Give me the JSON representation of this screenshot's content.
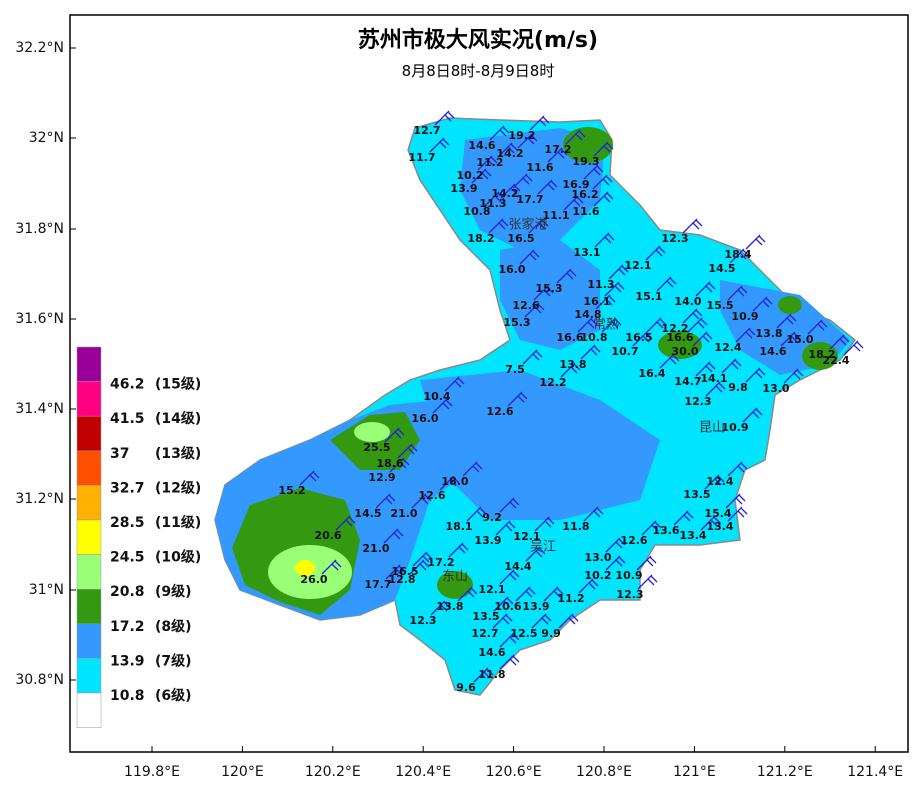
{
  "map": {
    "title": "苏州市极大风实况(m/s)",
    "subtitle": "8月8日8时-8月9日8时",
    "lat_labels": [
      "32.2°N",
      "32°N",
      "31.8°N",
      "31.6°N",
      "31.4°N",
      "31.2°N",
      "31°N",
      "30.8°N"
    ],
    "lon_labels": [
      "119.8°E",
      "120°E",
      "120.2°E",
      "120.4°E",
      "120.6°E",
      "120.8°E",
      "121°E",
      "121.2°E",
      "121.4°E"
    ],
    "legend_colors": [
      "#990099",
      "#ff0080",
      "#c00000",
      "#ff5000",
      "#ffb000",
      "#ffff00",
      "#99ff77",
      "#339911",
      "#3399ff",
      "#00e5ff",
      "#ffffff"
    ],
    "legend": [
      {
        "value": "46.2",
        "level": "(15级)"
      },
      {
        "value": "41.5",
        "level": "(14级)"
      },
      {
        "value": "37",
        "level": "(13级)"
      },
      {
        "value": "32.7",
        "level": "(12级)"
      },
      {
        "value": "28.5",
        "level": "(11级)"
      },
      {
        "value": "24.5",
        "level": "(10级)"
      },
      {
        "value": "20.8",
        "level": "(9级)"
      },
      {
        "value": "17.2",
        "level": "(8级)"
      },
      {
        "value": "13.9",
        "level": "(7级)"
      },
      {
        "value": "10.8",
        "level": "(6级)"
      }
    ],
    "places": [
      "张家港",
      "常熟",
      "吴江",
      "东山",
      "昆山"
    ],
    "stations": [
      "12.7",
      "11.7",
      "14.6",
      "19.2",
      "14.2",
      "17.2",
      "11.2",
      "19.3",
      "11.6",
      "10.2",
      "16.9",
      "13.9",
      "14.2",
      "16.2",
      "11.3",
      "17.7",
      "10.8",
      "11.1",
      "11.6",
      "18.2",
      "16.5",
      "12.3",
      "13.1",
      "18.4",
      "12.1",
      "16.0",
      "14.5",
      "11.3",
      "15.3",
      "15.1",
      "16.1",
      "14.0",
      "15.5",
      "12.6",
      "14.8",
      "15.3",
      "10.9",
      "12.2",
      "13.8",
      "15.0",
      "16.6",
      "10.8",
      "16.5",
      "16.6",
      "30.0",
      "10.7",
      "12.4",
      "14.6",
      "18.2",
      "22.4",
      "13.8",
      "7.5",
      "16.4",
      "12.2",
      "14.7",
      "14.1",
      "9.8",
      "13.0",
      "10.4",
      "12.3",
      "16.0",
      "12.6",
      "10.9",
      "25.5",
      "18.6",
      "12.9",
      "15.2",
      "18.0",
      "12.6",
      "13.5",
      "12.4",
      "14.5",
      "21.0",
      "18.1",
      "9.2",
      "13.9",
      "12.1",
      "11.8",
      "13.6",
      "13.4",
      "13.4",
      "15.4",
      "20.6",
      "21.0",
      "12.6",
      "17.2",
      "16.5",
      "26.0",
      "14.4",
      "13.0",
      "10.2",
      "10.9",
      "12.8",
      "17.7",
      "12.1",
      "11.2",
      "12.3",
      "13.8",
      "10.6",
      "13.9",
      "13.5",
      "12.3",
      "12.7",
      "12.5",
      "9.9",
      "14.6",
      "11.8",
      "9.6"
    ]
  }
}
